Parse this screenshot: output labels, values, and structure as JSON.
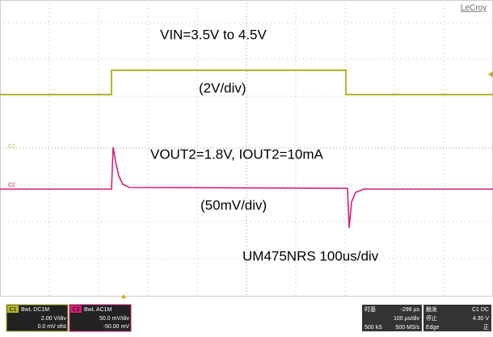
{
  "screen": {
    "brand": "LeCroy",
    "annotations": [
      "VIN=3.5V to 4.5V",
      "(2V/div)",
      "VOUT2=1.8V, IOUT2=10mA",
      "(50mV/div)",
      "UM475NRS 100us/div"
    ],
    "trace_markers": [
      "C1",
      "C2"
    ]
  },
  "status_bar": {
    "ch1": {
      "label": "C1",
      "mode": "BwL DC1M",
      "scale": "2.00 V/div",
      "offset": "0.0 mV ofst"
    },
    "ch2": {
      "label": "C2",
      "mode": "BwL AC1M",
      "scale": "50.0 mV/div",
      "offset": "-50.00 mV"
    },
    "timebase": {
      "label": "时基",
      "delay": "-298 µs",
      "scale": "100 µs/div",
      "samples": "500 kS",
      "rate": "500 MS/s"
    },
    "trigger": {
      "label": "触发",
      "state": "停止",
      "type": "Edge",
      "source": "C1 DC",
      "level": "4.30 V",
      "slope": "正"
    }
  }
}
